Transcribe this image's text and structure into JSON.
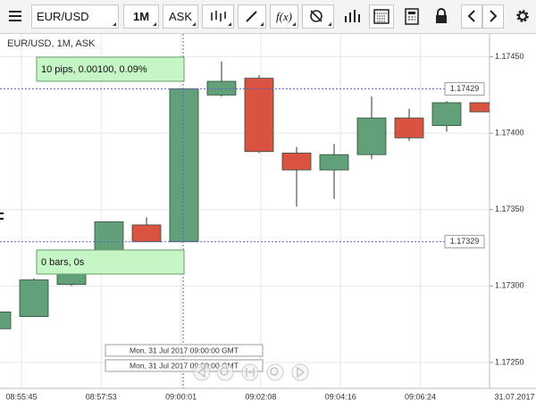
{
  "toolbar": {
    "symbol": "EUR/USD",
    "period": "1M",
    "side": "ASK",
    "indicators": "f(x)"
  },
  "chart_data": {
    "type": "candlestick",
    "title": "EUR/USD, 1M, ASK",
    "open": [
      1.17272,
      1.1728,
      1.17301,
      1.17323,
      1.1734,
      1.17329,
      1.17425,
      1.17436,
      1.17387,
      1.17376,
      1.17386,
      1.1741,
      1.17405,
      1.1742
    ],
    "high": [
      1.17283,
      1.17305,
      1.17312,
      1.17342,
      1.17345,
      1.17429,
      1.17447,
      1.17438,
      1.17391,
      1.17393,
      1.17424,
      1.17416,
      1.17421,
      1.1742
    ],
    "low": [
      1.17272,
      1.1728,
      1.173,
      1.17323,
      1.17329,
      1.17329,
      1.17424,
      1.17387,
      1.17352,
      1.17357,
      1.17383,
      1.17395,
      1.17401,
      1.17414
    ],
    "close": [
      1.17283,
      1.17304,
      1.17312,
      1.17342,
      1.17329,
      1.17429,
      1.17434,
      1.17388,
      1.17376,
      1.17386,
      1.1741,
      1.17397,
      1.1742,
      1.17414
    ],
    "up_color": "#62a07a",
    "down_color": "#d95340",
    "ylim": [
      1.17233,
      1.17465
    ],
    "yticks": [
      {
        "value": 1.1745,
        "label": "1.17450"
      },
      {
        "value": 1.174,
        "label": "1.17400"
      },
      {
        "value": 1.1735,
        "label": "1.17350"
      },
      {
        "value": 1.173,
        "label": "1.17300"
      },
      {
        "value": 1.1725,
        "label": "1.17250"
      }
    ],
    "xtick_labels": [
      "08:55:45",
      "08:57:53",
      "09:00:01",
      "09:02:08",
      "09:04:16",
      "09:06:24",
      "31.07.2017"
    ],
    "grid": true,
    "crosshair_levels": [
      1.17429,
      1.17329
    ],
    "measure_label": "10 pips, 0.00100, 0.09%",
    "bars_label": "0 bars, 0s",
    "time_labels": [
      "Mon, 31 Jul 2017 09:00:00 GMT",
      "Mon, 31 Jul 2017 09:00:00 GMT"
    ]
  }
}
